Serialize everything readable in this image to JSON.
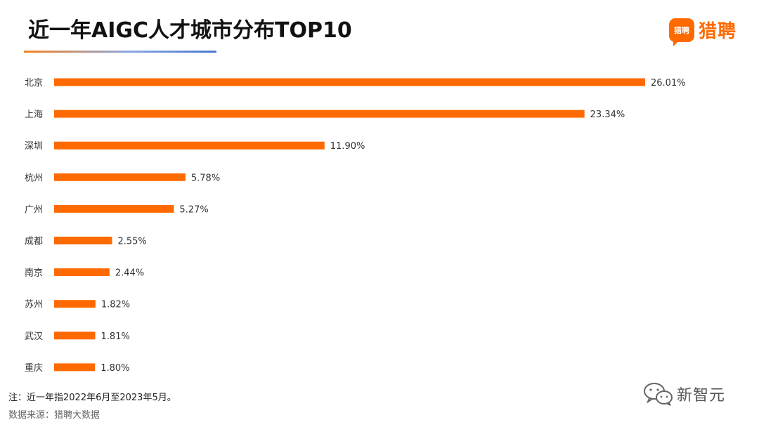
{
  "title": "近一年AIGC人才城市分布TOP10",
  "brand": {
    "badge_text": "猎聘",
    "name": "猎聘",
    "color": "#ff6a00"
  },
  "footnote": "注：近一年指2022年6月至2023年5月。",
  "source": "数据来源：猎聘大数据",
  "watermark": {
    "icon": "wechat-chat-icon",
    "text": "新智元"
  },
  "colors": {
    "bar": "#ff6a00",
    "label_text": "#333333"
  },
  "chart_data": {
    "type": "bar",
    "orientation": "horizontal",
    "title": "近一年AIGC人才城市分布TOP10",
    "xlabel": "",
    "ylabel": "",
    "xlim": [
      0,
      26.01
    ],
    "grid": false,
    "legend": "none",
    "value_format": "percent",
    "categories": [
      "北京",
      "上海",
      "深圳",
      "杭州",
      "广州",
      "成都",
      "南京",
      "苏州",
      "武汉",
      "重庆"
    ],
    "values": [
      26.01,
      23.34,
      11.9,
      5.78,
      5.27,
      2.55,
      2.44,
      1.82,
      1.81,
      1.8
    ],
    "value_labels": [
      "26.01%",
      "23.34%",
      "11.90%",
      "5.78%",
      "5.27%",
      "2.55%",
      "2.44%",
      "1.82%",
      "1.81%",
      "1.80%"
    ]
  }
}
